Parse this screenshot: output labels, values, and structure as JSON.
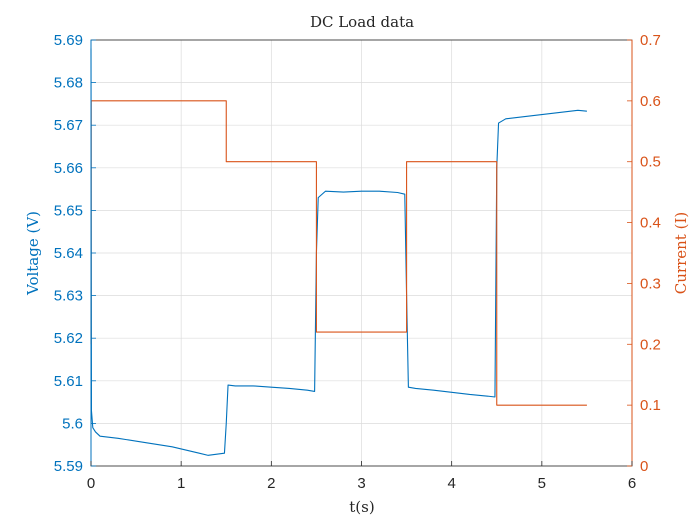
{
  "chart_data": {
    "type": "line",
    "title": "DC Load data",
    "xlabel": "t(s)",
    "x_ticks": [
      0,
      1,
      2,
      3,
      4,
      5,
      6
    ],
    "xlim": [
      0,
      6
    ],
    "grid": true,
    "left_axis": {
      "label": "Voltage (V)",
      "color": "#0072BD",
      "ylim": [
        5.59,
        5.69
      ],
      "ticks": [
        "5.59",
        "5.6",
        "5.61",
        "5.62",
        "5.63",
        "5.64",
        "5.65",
        "5.66",
        "5.67",
        "5.68",
        "5.69"
      ]
    },
    "right_axis": {
      "label": "Current (I)",
      "color": "#D95319",
      "ylim": [
        0,
        0.7
      ],
      "ticks": [
        "0",
        "0.1",
        "0.2",
        "0.3",
        "0.4",
        "0.5",
        "0.6",
        "0.7"
      ]
    },
    "series": [
      {
        "axis": "left",
        "color": "#0072BD",
        "x": [
          0,
          0.005,
          0.02,
          0.05,
          0.1,
          0.3,
          0.6,
          0.9,
          1.2,
          1.3,
          1.48,
          1.5,
          1.52,
          1.6,
          1.8,
          2.0,
          2.2,
          2.4,
          2.48,
          2.5,
          2.52,
          2.6,
          2.8,
          3.0,
          3.2,
          3.4,
          3.48,
          3.5,
          3.52,
          3.6,
          3.8,
          4.0,
          4.2,
          4.4,
          4.48,
          4.5,
          4.52,
          4.6,
          4.8,
          5.0,
          5.2,
          5.4,
          5.5
        ],
        "y": [
          5.688,
          5.603,
          5.599,
          5.598,
          5.597,
          5.5965,
          5.5955,
          5.5945,
          5.593,
          5.5925,
          5.593,
          5.6,
          5.609,
          5.6088,
          5.6088,
          5.6085,
          5.6082,
          5.6078,
          5.6075,
          5.64,
          5.653,
          5.6545,
          5.6543,
          5.6545,
          5.6545,
          5.6542,
          5.6538,
          5.63,
          5.6085,
          5.6082,
          5.6078,
          5.6073,
          5.6068,
          5.6064,
          5.6062,
          5.66,
          5.6705,
          5.6715,
          5.672,
          5.6725,
          5.673,
          5.6735,
          5.6733
        ]
      },
      {
        "axis": "right",
        "color": "#D95319",
        "x": [
          0,
          0.002,
          1.5,
          1.5,
          2.5,
          2.5,
          3.5,
          3.5,
          4.5,
          4.5,
          5.5
        ],
        "y": [
          0.2,
          0.6,
          0.6,
          0.5,
          0.5,
          0.22,
          0.22,
          0.5,
          0.5,
          0.1,
          0.1
        ]
      }
    ]
  }
}
